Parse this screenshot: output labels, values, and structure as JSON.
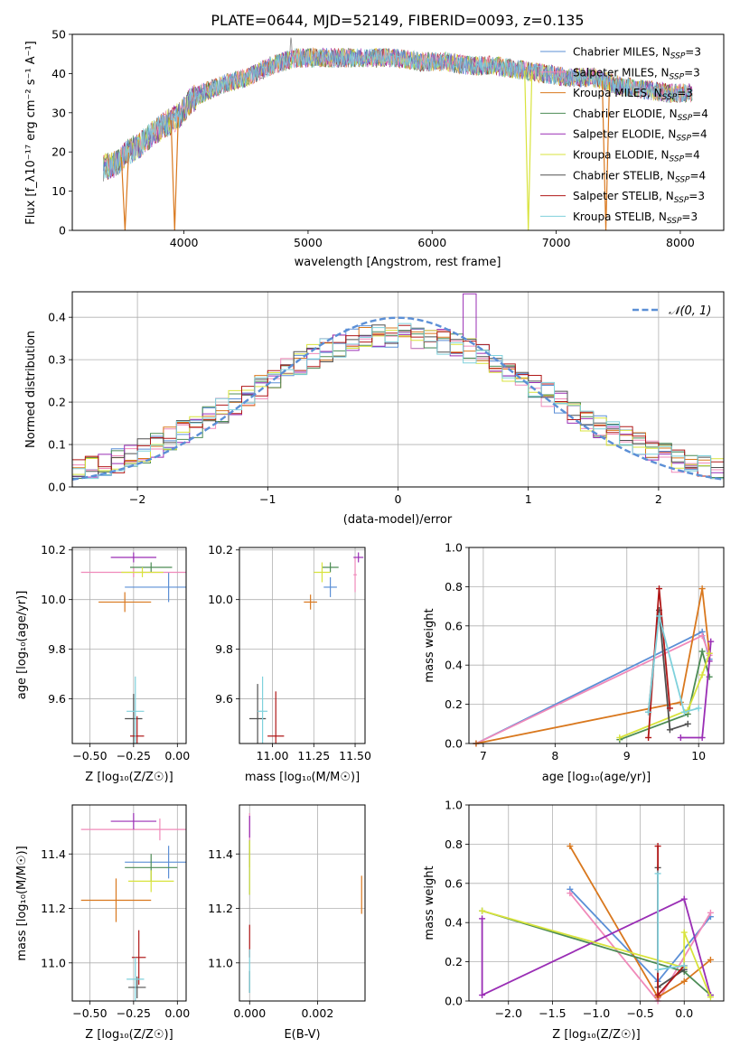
{
  "figure_title": "PLATE=0644, MJD=52149, FIBERID=0093, z=0.135",
  "colors": {
    "Chabrier MILES": "#5b8fd6",
    "Salpeter MILES": "#f08aba",
    "Kroupa MILES": "#d9781e",
    "Chabrier ELODIE": "#4c8c55",
    "Salpeter ELODIE": "#9a2eb5",
    "Kroupa ELODIE": "#d8e33c",
    "Chabrier STELIB": "#505050",
    "Salpeter STELIB": "#b01818",
    "Kroupa STELIB": "#7fd1dc",
    "normal": "#5b8fd6"
  },
  "chart_data": [
    {
      "type": "line",
      "name": "spectrum",
      "xlabel": "wavelength [Angstrom, rest frame]",
      "ylabel": "Flux [f_λ10⁻¹⁷ erg cm⁻² s⁻¹ A⁻¹]",
      "xlim": [
        3100,
        8350
      ],
      "ylim": [
        0,
        50
      ],
      "xticks": [
        4000,
        5000,
        6000,
        7000,
        8000
      ],
      "yticks": [
        0,
        10,
        20,
        30,
        40,
        50
      ],
      "legend_position": "top-right",
      "legend": [
        {
          "name": "Chabrier MILES",
          "label": "Chabrier MILES, N",
          "sub": "SSP",
          "suffix": "=3"
        },
        {
          "name": "Salpeter MILES",
          "label": "Salpeter MILES, N",
          "sub": "SSP",
          "suffix": "=3"
        },
        {
          "name": "Kroupa MILES",
          "label": "Kroupa MILES, N",
          "sub": "SSP",
          "suffix": "=3"
        },
        {
          "name": "Chabrier ELODIE",
          "label": "Chabrier ELODIE, N",
          "sub": "SSP",
          "suffix": "=4"
        },
        {
          "name": "Salpeter ELODIE",
          "label": "Salpeter ELODIE, N",
          "sub": "SSP",
          "suffix": "=4"
        },
        {
          "name": "Kroupa ELODIE",
          "label": "Kroupa ELODIE, N",
          "sub": "SSP",
          "suffix": "=4"
        },
        {
          "name": "Chabrier STELIB",
          "label": "Chabrier STELIB, N",
          "sub": "SSP",
          "suffix": "=4"
        },
        {
          "name": "Salpeter STELIB",
          "label": "Salpeter STELIB, N",
          "sub": "SSP",
          "suffix": "=3"
        },
        {
          "name": "Kroupa STELIB",
          "label": "Kroupa STELIB, N",
          "sub": "SSP",
          "suffix": "=3"
        }
      ],
      "continuum": {
        "x": [
          3350,
          3450,
          3550,
          3650,
          3750,
          3850,
          3950,
          4050,
          4150,
          4300,
          4500,
          4700,
          4900,
          5100,
          5300,
          5500,
          5700,
          5900,
          6100,
          6300,
          6500,
          6700,
          6900,
          7100,
          7300,
          7500,
          7700,
          7900,
          8100
        ],
        "y": [
          16,
          17,
          20,
          22,
          25,
          27,
          29,
          33,
          35,
          37,
          39,
          42,
          44,
          44,
          44,
          44,
          44,
          43,
          43,
          42,
          42,
          41,
          40,
          39,
          39,
          37,
          36,
          35,
          35
        ]
      },
      "dropouts": [
        {
          "x": 3525,
          "series": "Kroupa MILES"
        },
        {
          "x": 3925,
          "series": "Kroupa MILES"
        },
        {
          "x": 6775,
          "series": "Kroupa ELODIE"
        },
        {
          "x": 7400,
          "series": "Kroupa MILES"
        }
      ]
    },
    {
      "type": "histogram",
      "name": "residuals",
      "xlabel": "(data-model)/error",
      "ylabel": "Normed distribution",
      "xlim": [
        -2.5,
        2.5
      ],
      "ylim": [
        0,
        0.46
      ],
      "xticks": [
        -2,
        -1,
        0,
        1,
        2
      ],
      "yticks": [
        0.0,
        0.1,
        0.2,
        0.3,
        0.4
      ],
      "grid": true,
      "legend_position": "top-right",
      "bin_width": 0.1,
      "reference_curve": {
        "name": "𝒩(0, 1)",
        "type": "gaussian",
        "mean": 0,
        "sigma": 1
      }
    },
    {
      "type": "scatter",
      "name": "age-vs-Z",
      "xlabel": "Z [log₁₀(Z/Z☉)]",
      "ylabel": "age  [log₁₀(age/yr)]",
      "xlim": [
        -0.6,
        0.05
      ],
      "ylim": [
        9.42,
        10.21
      ],
      "xticks": [
        -0.5,
        -0.25,
        0.0
      ],
      "xticklabels": [
        "−0.50",
        "−0.25",
        "0.00"
      ],
      "yticks": [
        9.6,
        9.8,
        10.0,
        10.2
      ],
      "grid": true,
      "points": [
        {
          "series": "Chabrier MILES",
          "x": -0.05,
          "y": 10.05,
          "xerr": 0.25,
          "yerr": 0.06
        },
        {
          "series": "Salpeter MILES",
          "x": -0.25,
          "y": 10.11,
          "xerr": 0.3,
          "yerr": 0.02
        },
        {
          "series": "Kroupa MILES",
          "x": -0.3,
          "y": 9.99,
          "xerr": 0.15,
          "yerr": 0.04
        },
        {
          "series": "Chabrier ELODIE",
          "x": -0.15,
          "y": 10.13,
          "xerr": 0.12,
          "yerr": 0.02
        },
        {
          "series": "Salpeter ELODIE",
          "x": -0.25,
          "y": 10.17,
          "xerr": 0.13,
          "yerr": 0.02
        },
        {
          "series": "Kroupa ELODIE",
          "x": -0.2,
          "y": 10.11,
          "xerr": 0.12,
          "yerr": 0.02
        },
        {
          "series": "Chabrier STELIB",
          "x": -0.25,
          "y": 9.52,
          "xerr": 0.05,
          "yerr": 0.1
        },
        {
          "series": "Salpeter STELIB",
          "x": -0.23,
          "y": 9.45,
          "xerr": 0.04,
          "yerr": 0.08
        },
        {
          "series": "Kroupa STELIB",
          "x": -0.24,
          "y": 9.55,
          "xerr": 0.05,
          "yerr": 0.14
        }
      ]
    },
    {
      "type": "scatter",
      "name": "age-vs-mass",
      "xlabel": "mass [log₁₀(M/M☉)]",
      "xlim": [
        10.8,
        11.56
      ],
      "ylim": [
        9.42,
        10.21
      ],
      "xticks": [
        11.0,
        11.25,
        11.5
      ],
      "xticklabels": [
        "11.00",
        "11.25",
        "11.50"
      ],
      "yticks": [
        9.6,
        9.8,
        10.0,
        10.2
      ],
      "grid": true,
      "points": [
        {
          "series": "Chabrier MILES",
          "x": 11.35,
          "y": 10.05,
          "xerr": 0.04,
          "yerr": 0.04
        },
        {
          "series": "Salpeter MILES",
          "x": 11.5,
          "y": 10.1,
          "xerr": 0.01,
          "yerr": 0.07
        },
        {
          "series": "Kroupa MILES",
          "x": 11.23,
          "y": 9.99,
          "xerr": 0.04,
          "yerr": 0.03
        },
        {
          "series": "Chabrier ELODIE",
          "x": 11.35,
          "y": 10.13,
          "xerr": 0.05,
          "yerr": 0.02
        },
        {
          "series": "Salpeter ELODIE",
          "x": 11.52,
          "y": 10.17,
          "xerr": 0.03,
          "yerr": 0.02
        },
        {
          "series": "Kroupa ELODIE",
          "x": 11.3,
          "y": 10.11,
          "xerr": 0.05,
          "yerr": 0.04
        },
        {
          "series": "Chabrier STELIB",
          "x": 10.91,
          "y": 9.52,
          "xerr": 0.05,
          "yerr": 0.14
        },
        {
          "series": "Salpeter STELIB",
          "x": 11.02,
          "y": 9.45,
          "xerr": 0.05,
          "yerr": 0.18
        },
        {
          "series": "Kroupa STELIB",
          "x": 10.94,
          "y": 9.55,
          "xerr": 0.03,
          "yerr": 0.14
        }
      ]
    },
    {
      "type": "line",
      "name": "mass-weight-vs-age",
      "xlabel": "age  [log₁₀(age/yr)]",
      "ylabel": "mass weight",
      "xlim": [
        6.8,
        10.35
      ],
      "ylim": [
        0,
        1
      ],
      "xticks": [
        7,
        8,
        9,
        10
      ],
      "yticks": [
        0.0,
        0.2,
        0.4,
        0.6,
        0.8,
        1.0
      ],
      "grid": true,
      "series": [
        {
          "name": "Chabrier MILES",
          "x": [
            6.9,
            10.05,
            10.15
          ],
          "y": [
            0.0,
            0.57,
            0.43
          ]
        },
        {
          "name": "Salpeter MILES",
          "x": [
            6.9,
            10.05,
            10.15
          ],
          "y": [
            0.0,
            0.55,
            0.45
          ]
        },
        {
          "name": "Kroupa MILES",
          "x": [
            6.9,
            9.75,
            10.05,
            10.15
          ],
          "y": [
            0.0,
            0.21,
            0.79,
            0.46
          ]
        },
        {
          "name": "Chabrier ELODIE",
          "x": [
            8.9,
            9.85,
            10.05,
            10.15
          ],
          "y": [
            0.02,
            0.15,
            0.47,
            0.34
          ]
        },
        {
          "name": "Salpeter ELODIE",
          "x": [
            9.75,
            10.05,
            10.15,
            10.17
          ],
          "y": [
            0.03,
            0.03,
            0.42,
            0.52
          ]
        },
        {
          "name": "Kroupa ELODIE",
          "x": [
            8.9,
            9.85,
            10.05,
            10.15
          ],
          "y": [
            0.03,
            0.17,
            0.35,
            0.46
          ]
        },
        {
          "name": "Chabrier STELIB",
          "x": [
            9.3,
            9.45,
            9.6,
            9.85
          ],
          "y": [
            0.16,
            0.68,
            0.07,
            0.1
          ]
        },
        {
          "name": "Salpeter STELIB",
          "x": [
            9.3,
            9.45,
            9.6
          ],
          "y": [
            0.03,
            0.79,
            0.18
          ]
        },
        {
          "name": "Kroupa STELIB",
          "x": [
            9.3,
            9.45,
            9.8,
            10.0
          ],
          "y": [
            0.16,
            0.65,
            0.16,
            0.18
          ]
        }
      ]
    },
    {
      "type": "scatter",
      "name": "mass-vs-Z",
      "xlabel": "Z [log₁₀(Z/Z☉)]",
      "ylabel": "mass [log₁₀(M/M☉)]",
      "xlim": [
        -0.6,
        0.05
      ],
      "ylim": [
        10.86,
        11.58
      ],
      "xticks": [
        -0.5,
        -0.25,
        0.0
      ],
      "xticklabels": [
        "−0.50",
        "−0.25",
        "0.00"
      ],
      "yticks": [
        11.0,
        11.2,
        11.4
      ],
      "grid": true,
      "points": [
        {
          "series": "Chabrier MILES",
          "x": -0.05,
          "y": 11.37,
          "xerr": 0.25,
          "yerr": 0.06
        },
        {
          "series": "Salpeter MILES",
          "x": -0.1,
          "y": 11.49,
          "xerr": 0.45,
          "yerr": 0.04
        },
        {
          "series": "Kroupa MILES",
          "x": -0.35,
          "y": 11.23,
          "xerr": 0.2,
          "yerr": 0.08
        },
        {
          "series": "Chabrier ELODIE",
          "x": -0.15,
          "y": 11.35,
          "xerr": 0.15,
          "yerr": 0.05
        },
        {
          "series": "Salpeter ELODIE",
          "x": -0.25,
          "y": 11.52,
          "xerr": 0.13,
          "yerr": 0.03
        },
        {
          "series": "Kroupa ELODIE",
          "x": -0.15,
          "y": 11.3,
          "xerr": 0.13,
          "yerr": 0.04
        },
        {
          "series": "Chabrier STELIB",
          "x": -0.23,
          "y": 10.91,
          "xerr": 0.05,
          "yerr": 0.04
        },
        {
          "series": "Salpeter STELIB",
          "x": -0.22,
          "y": 11.02,
          "xerr": 0.04,
          "yerr": 0.1
        },
        {
          "series": "Kroupa STELIB",
          "x": -0.24,
          "y": 10.94,
          "xerr": 0.05,
          "yerr": 0.08
        }
      ]
    },
    {
      "type": "scatter",
      "name": "mass-vs-EBV",
      "xlabel": "E(B-V)",
      "xlim": [
        -0.0003,
        0.0034
      ],
      "ylim": [
        10.86,
        11.58
      ],
      "xticks": [
        0.0,
        0.002
      ],
      "xticklabels": [
        "0.000",
        "0.002"
      ],
      "yticks": [
        11.0,
        11.2,
        11.4
      ],
      "grid": true,
      "points": [
        {
          "series": "Chabrier MILES",
          "x": 0.0,
          "y": 11.3,
          "xerr": 0,
          "yerr": 0.05
        },
        {
          "series": "Salpeter MILES",
          "x": 0.0,
          "y": 11.45,
          "xerr": 0,
          "yerr": 0.1
        },
        {
          "series": "Kroupa MILES",
          "x": 0.0033,
          "y": 11.25,
          "xerr": 0,
          "yerr": 0.07
        },
        {
          "series": "Chabrier ELODIE",
          "x": 0.0,
          "y": 11.4,
          "xerr": 0,
          "yerr": 0.05
        },
        {
          "series": "Salpeter ELODIE",
          "x": 0.0,
          "y": 11.5,
          "xerr": 0,
          "yerr": 0.04
        },
        {
          "series": "Kroupa ELODIE",
          "x": 0.0,
          "y": 11.35,
          "xerr": 0,
          "yerr": 0.1
        },
        {
          "series": "Chabrier STELIB",
          "x": 0.0,
          "y": 10.93,
          "xerr": 0,
          "yerr": 0.04
        },
        {
          "series": "Salpeter STELIB",
          "x": 0.0,
          "y": 11.08,
          "xerr": 0,
          "yerr": 0.06
        },
        {
          "series": "Kroupa STELIB",
          "x": 0.0,
          "y": 10.97,
          "xerr": 0,
          "yerr": 0.08
        }
      ]
    },
    {
      "type": "line",
      "name": "mass-weight-vs-Z",
      "xlabel": "Z [log₁₀(Z/Z☉)]",
      "ylabel": "mass weight",
      "xlim": [
        -2.45,
        0.45
      ],
      "ylim": [
        0,
        1
      ],
      "xticks": [
        -2.0,
        -1.5,
        -1.0,
        -0.5,
        0.0
      ],
      "xticklabels": [
        "−2.0",
        "−1.5",
        "−1.0",
        "−0.5",
        "0.0"
      ],
      "yticks": [
        0.0,
        0.2,
        0.4,
        0.6,
        0.8,
        1.0
      ],
      "grid": true,
      "series": [
        {
          "name": "Chabrier MILES",
          "x": [
            -1.3,
            -0.3,
            0.3
          ],
          "y": [
            0.57,
            0.1,
            0.43
          ]
        },
        {
          "name": "Salpeter MILES",
          "x": [
            -1.3,
            -0.3,
            0.3
          ],
          "y": [
            0.55,
            0.0,
            0.45
          ]
        },
        {
          "name": "Kroupa MILES",
          "x": [
            -1.3,
            -0.3,
            0.0,
            0.3
          ],
          "y": [
            0.79,
            0.02,
            0.1,
            0.21
          ]
        },
        {
          "name": "Chabrier ELODIE",
          "x": [
            -2.3,
            0.0,
            0.3
          ],
          "y": [
            0.46,
            0.15,
            0.03
          ]
        },
        {
          "name": "Salpeter ELODIE",
          "x": [
            -2.3,
            -2.3,
            0.0,
            0.3
          ],
          "y": [
            0.42,
            0.03,
            0.52,
            0.03
          ]
        },
        {
          "name": "Kroupa ELODIE",
          "x": [
            -2.3,
            0.0,
            0.0,
            0.3
          ],
          "y": [
            0.46,
            0.17,
            0.35,
            0.02
          ]
        },
        {
          "name": "Chabrier STELIB",
          "x": [
            -0.3,
            -0.3,
            0.0
          ],
          "y": [
            0.68,
            0.07,
            0.16
          ]
        },
        {
          "name": "Salpeter STELIB",
          "x": [
            -0.3,
            -0.3,
            0.0
          ],
          "y": [
            0.79,
            0.03,
            0.18
          ]
        },
        {
          "name": "Kroupa STELIB",
          "x": [
            -0.3,
            -0.3,
            0.0
          ],
          "y": [
            0.65,
            0.16,
            0.18
          ]
        }
      ]
    }
  ]
}
